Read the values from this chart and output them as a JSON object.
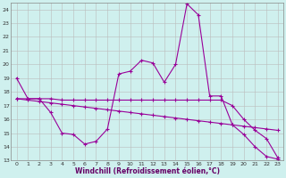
{
  "xlabel": "Windchill (Refroidissement éolien,°C)",
  "bg_color": "#cff0ee",
  "line_color": "#990099",
  "grid_color": "#bbbbbb",
  "xlim": [
    -0.5,
    23.5
  ],
  "ylim": [
    13,
    24.5
  ],
  "yticks": [
    13,
    14,
    15,
    16,
    17,
    18,
    19,
    20,
    21,
    22,
    23,
    24
  ],
  "xticks": [
    0,
    1,
    2,
    3,
    4,
    5,
    6,
    7,
    8,
    9,
    10,
    11,
    12,
    13,
    14,
    15,
    16,
    17,
    18,
    19,
    20,
    21,
    22,
    23
  ],
  "series1_x": [
    0,
    1,
    2,
    3,
    4,
    5,
    6,
    7,
    8,
    9,
    10,
    11,
    12,
    13,
    14,
    15,
    16,
    17,
    18,
    19,
    20,
    21,
    22,
    23
  ],
  "series1_y": [
    19.0,
    17.5,
    17.5,
    16.5,
    15.0,
    14.9,
    14.2,
    14.4,
    15.3,
    19.3,
    19.5,
    20.3,
    20.1,
    18.7,
    20.0,
    24.4,
    23.6,
    17.7,
    17.7,
    15.6,
    14.9,
    14.0,
    13.3,
    13.1
  ],
  "series2_x": [
    0,
    1,
    2,
    3,
    4,
    5,
    6,
    7,
    8,
    9,
    10,
    11,
    12,
    13,
    14,
    15,
    16,
    17,
    18,
    19,
    20,
    21,
    22,
    23
  ],
  "series2_y": [
    17.5,
    17.5,
    17.5,
    17.5,
    17.4,
    17.4,
    17.4,
    17.4,
    17.4,
    17.4,
    17.4,
    17.4,
    17.4,
    17.4,
    17.4,
    17.4,
    17.4,
    17.4,
    17.4,
    17.0,
    16.0,
    15.2,
    14.6,
    13.2
  ],
  "series3_x": [
    0,
    1,
    2,
    3,
    4,
    5,
    6,
    7,
    8,
    9,
    10,
    11,
    12,
    13,
    14,
    15,
    16,
    17,
    18,
    19,
    20,
    21,
    22,
    23
  ],
  "series3_y": [
    17.5,
    17.4,
    17.3,
    17.2,
    17.1,
    17.0,
    16.9,
    16.8,
    16.7,
    16.6,
    16.5,
    16.4,
    16.3,
    16.2,
    16.1,
    16.0,
    15.9,
    15.8,
    15.7,
    15.6,
    15.5,
    15.4,
    15.3,
    15.2
  ]
}
